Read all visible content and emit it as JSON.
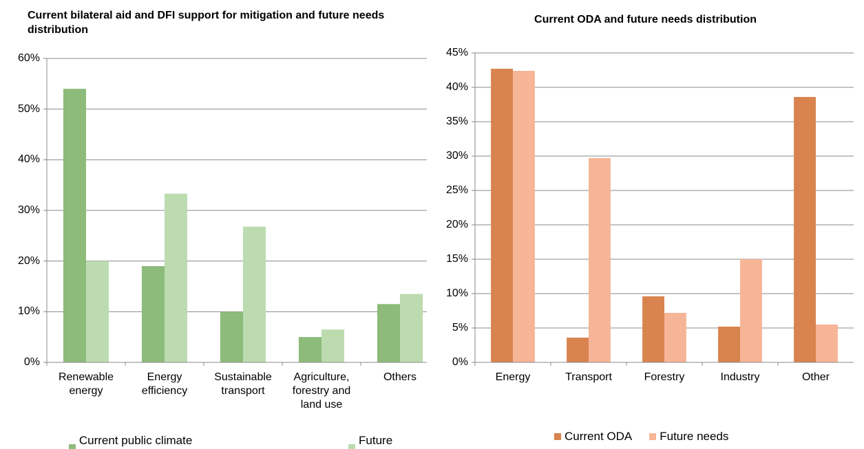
{
  "chart_data": [
    {
      "type": "bar",
      "title": "Current bilateral aid and DFI support  for mitigation and future needs distribution",
      "categories": [
        "Renewable energy",
        "Energy efficiency",
        "Sustainable transport",
        "Agriculture, forestry and land use",
        "Others"
      ],
      "series": [
        {
          "name": "Current public climate finance",
          "color": "#8dbb7a",
          "values": [
            54,
            19,
            10,
            5,
            11.5
          ]
        },
        {
          "name": "Future needs",
          "color": "#bcdcb0",
          "values": [
            20,
            33.3,
            26.8,
            6.5,
            13.5
          ]
        }
      ],
      "ylim": [
        0,
        60
      ],
      "yticks": [
        {
          "value": 0,
          "label": "0%"
        },
        {
          "value": 10,
          "label": "10%"
        },
        {
          "value": 20,
          "label": "20%"
        },
        {
          "value": 30,
          "label": "30%"
        },
        {
          "value": 40,
          "label": "40%"
        },
        {
          "value": 50,
          "label": "50%"
        },
        {
          "value": 60,
          "label": "60%"
        }
      ],
      "grid": true,
      "legend": "bottom"
    },
    {
      "type": "bar",
      "title": "Current ODA and future needs distribution",
      "categories": [
        "Energy",
        "Transport",
        "Forestry",
        "Industry",
        "Other"
      ],
      "series": [
        {
          "name": "Current ODA",
          "color": "#d9834f",
          "values": [
            42.7,
            3.6,
            9.6,
            5.2,
            38.6
          ]
        },
        {
          "name": "Future needs",
          "color": "#f7b597",
          "values": [
            42.4,
            29.7,
            7.2,
            15,
            5.5
          ]
        }
      ],
      "ylim": [
        0,
        45
      ],
      "yticks": [
        {
          "value": 0,
          "label": "0%"
        },
        {
          "value": 5,
          "label": "5%"
        },
        {
          "value": 10,
          "label": "10%"
        },
        {
          "value": 15,
          "label": "15%"
        },
        {
          "value": 20,
          "label": "20%"
        },
        {
          "value": 25,
          "label": "25%"
        },
        {
          "value": 30,
          "label": "30%"
        },
        {
          "value": 35,
          "label": "35%"
        },
        {
          "value": 40,
          "label": "40%"
        },
        {
          "value": 45,
          "label": "45%"
        }
      ],
      "grid": true,
      "legend": "bottom"
    }
  ]
}
